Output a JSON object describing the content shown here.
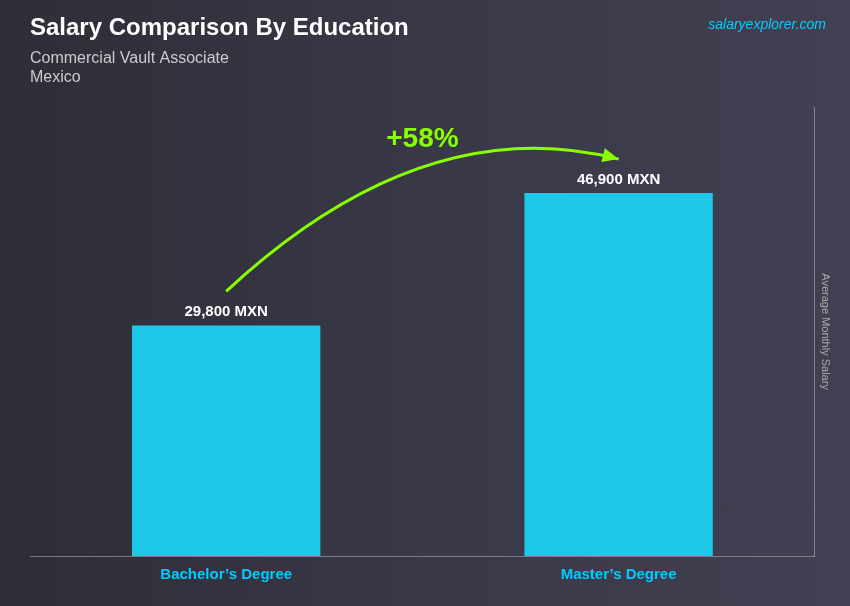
{
  "chart_data": {
    "type": "bar",
    "title": "Salary Comparison By Education",
    "subtitle": [
      "Commercial Vault Associate",
      "Mexico"
    ],
    "categories": [
      "Bachelor’s Degree",
      "Master’s Degree"
    ],
    "values": [
      29800,
      46900
    ],
    "value_labels": [
      "29,800 MXN",
      "46,900 MXN"
    ],
    "data_labels": true,
    "color": "#1EC8E8",
    "ylabel": "Average Monthly Salary",
    "ylim": [
      0,
      58000
    ],
    "tick_labels": "x",
    "grid": false,
    "annotations": [
      "+58%",
      "salaryexplorer.com"
    ]
  }
}
